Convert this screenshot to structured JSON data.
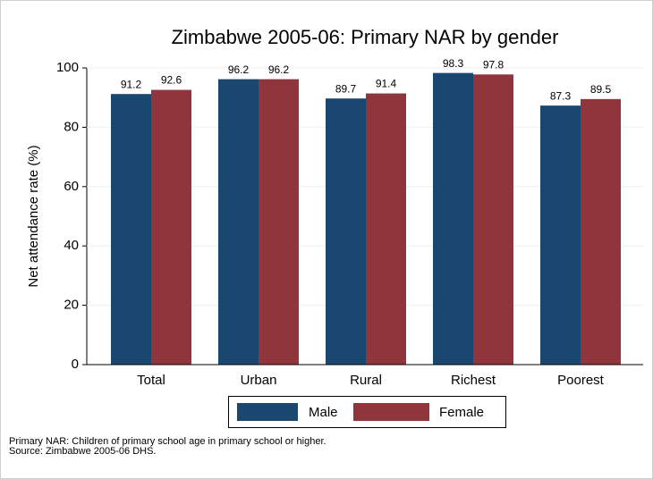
{
  "chart_data": {
    "type": "bar",
    "title": "Zimbabwe 2005-06: Primary NAR by gender",
    "y_label": "Net attendance rate (%)",
    "categories": [
      "Total",
      "Urban",
      "Rural",
      "Richest",
      "Poorest"
    ],
    "series": [
      {
        "name": "Male",
        "color": "#1a476f",
        "values": [
          91.2,
          96.2,
          89.7,
          98.3,
          87.3
        ]
      },
      {
        "name": "Female",
        "color": "#90353b",
        "values": [
          92.6,
          96.2,
          91.4,
          97.8,
          89.5
        ]
      }
    ],
    "ylim": [
      0,
      100
    ],
    "yticks": [
      0,
      20,
      40,
      60,
      80,
      100
    ],
    "grid": true,
    "legend": "bottom",
    "notes": [
      "Primary NAR: Children of primary school age in primary school or higher.",
      "Source: Zimbabwe 2005-06 DHS."
    ]
  }
}
